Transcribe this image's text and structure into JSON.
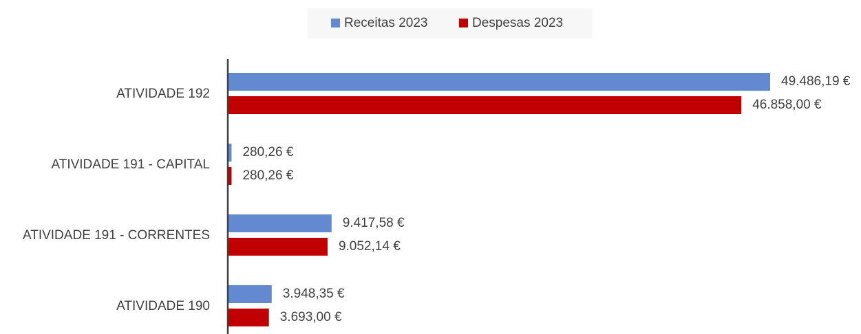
{
  "chart_data": {
    "type": "hbar",
    "categories": [
      "ATIVIDADE 192",
      "ATIVIDADE 191 - CAPITAL",
      "ATIVIDADE 191 - CORRENTES",
      "ATIVIDADE 190"
    ],
    "series": [
      {
        "name": "Receitas 2023",
        "color": "#6389d0",
        "values": [
          49486.19,
          280.26,
          9417.58,
          3948.35
        ],
        "value_labels": [
          "49.486,19 €",
          "280,26 €",
          "9.417,58 €",
          "3.948,35 €"
        ]
      },
      {
        "name": "Despesas 2023",
        "color": "#c00000",
        "values": [
          46858.0,
          280.26,
          9052.14,
          3693.0
        ],
        "value_labels": [
          "46.858,00 €",
          "280,26 €",
          "9.052,14 €",
          "3.693,00 €"
        ]
      }
    ],
    "legend": "top"
  }
}
